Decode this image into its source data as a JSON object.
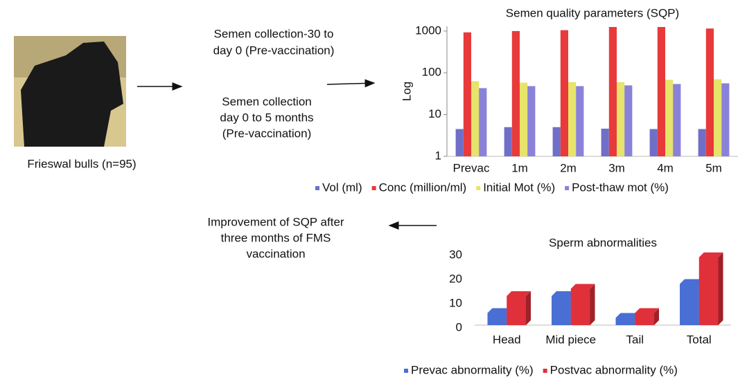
{
  "texts": {
    "bull_label": "Frieswal bulls (n=95)",
    "step1": [
      "Semen collection-30 to",
      "day 0 (Pre-vaccination)"
    ],
    "step2": [
      "Semen collection",
      "day 0 to 5 months",
      "(Pre-vaccination)"
    ],
    "result": [
      "Improvement of SQP after",
      "three months of FMS",
      "vaccination"
    ]
  },
  "chart_data": [
    {
      "type": "bar",
      "title": "Semen quality parameters (SQP)",
      "y_label": "Log",
      "log_scale": true,
      "three_d": false,
      "legend": "bottom",
      "categories": [
        "Prevac",
        "1m",
        "2m",
        "3m",
        "4m",
        "5m"
      ],
      "series": [
        {
          "name": "Vol (ml)",
          "color": "#6f6fc8",
          "values": [
            4.5,
            5,
            5,
            4.6,
            4.5,
            4.5
          ]
        },
        {
          "name": "Conc (million/ml)",
          "color": "#e83a3a",
          "values": [
            930,
            1000,
            1050,
            1250,
            1250,
            1150
          ]
        },
        {
          "name": "Initial Mot (%)",
          "color": "#e6e46a",
          "values": [
            63,
            58,
            60,
            60,
            68,
            70
          ]
        },
        {
          "name": "Post-thaw mot (%)",
          "color": "#8a82d8",
          "values": [
            43,
            48,
            48,
            50,
            54,
            56
          ]
        }
      ],
      "ylim": [
        1,
        1300
      ],
      "yticks": [
        1,
        10,
        100,
        1000
      ]
    },
    {
      "type": "bar",
      "title": "Sperm abnormalities",
      "log_scale": false,
      "three_d": true,
      "legend": "bottom",
      "categories": [
        "Head",
        "Mid piece",
        "Tail",
        "Total"
      ],
      "series": [
        {
          "name": "Prevac abnormality (%)",
          "color": "#4a6fd4",
          "values": [
            5,
            12,
            3,
            17
          ]
        },
        {
          "name": "Postvac abnormality (%)",
          "color": "#e0303a",
          "values": [
            12,
            15,
            5,
            28
          ]
        }
      ],
      "ylim": [
        0,
        30
      ],
      "yticks": [
        0,
        10,
        20,
        30
      ]
    }
  ]
}
